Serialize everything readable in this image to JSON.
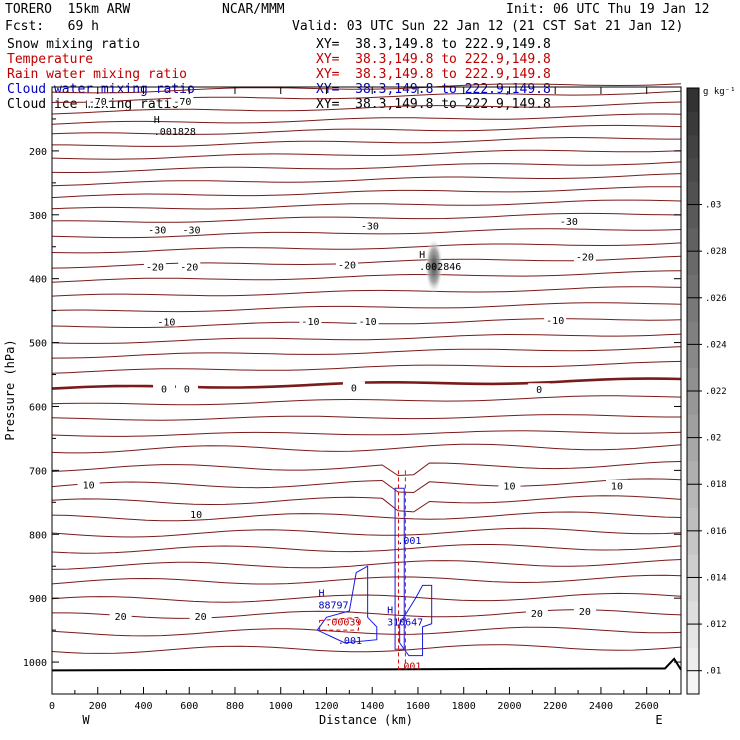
{
  "header": {
    "model": "TORERO  15km ARW",
    "center": "NCAR/MMM",
    "init": "Init: 06 UTC Thu 19 Jan 12",
    "fcst": "Fcst:   69 h",
    "valid": "Valid: 03 UTC Sun 22 Jan 12 (21 CST Sat 21 Jan 12)"
  },
  "fields": [
    {
      "name": "Snow mixing ratio",
      "xy": "XY=  38.3,149.8 to 222.9,149.8",
      "color": "#000000"
    },
    {
      "name": "Temperature",
      "xy": "XY=  38.3,149.8 to 222.9,149.8",
      "color": "#c00000"
    },
    {
      "name": "Rain water mixing ratio",
      "xy": "XY=  38.3,149.8 to 222.9,149.8",
      "color": "#c00000"
    },
    {
      "name": "Cloud water mixing ratio",
      "xy": "XY=  38.3,149.8 to 222.9,149.8",
      "color": "#0000c0"
    },
    {
      "name": "Cloud ice mixing ratio",
      "xy": "XY=  38.3,149.8 to 222.9,149.8",
      "color": "#000000"
    }
  ],
  "chart_data": {
    "type": "contour",
    "xlabel": "Distance (km)",
    "ylabel": "Pressure (hPa)",
    "xlim": [
      0,
      2750
    ],
    "ylim": [
      1050,
      100
    ],
    "x_ticks": [
      0,
      200,
      400,
      600,
      800,
      1000,
      1200,
      1400,
      1600,
      1800,
      2000,
      2200,
      2400,
      2600
    ],
    "y_ticks": [
      200,
      300,
      400,
      500,
      600,
      700,
      800,
      900,
      1000
    ],
    "x_end_labels": {
      "left": "W",
      "right": "E"
    },
    "colorbar": {
      "unit": "g kg⁻¹",
      "ticks": [
        0.01,
        0.012,
        0.014,
        0.016,
        0.018,
        0.02,
        0.022,
        0.024,
        0.026,
        0.028,
        0.03
      ],
      "tick_labels": [
        ".01",
        ".012",
        ".014",
        ".016",
        ".018",
        ".02",
        ".022",
        ".024",
        ".026",
        ".028",
        ".03"
      ],
      "range": [
        0.009,
        0.035
      ]
    },
    "temperature_labels": [
      {
        "text": "-70",
        "x": 200,
        "p": 122
      },
      {
        "text": "-70",
        "x": 570,
        "p": 122
      },
      {
        "text": "-30",
        "x": 460,
        "p": 323
      },
      {
        "text": "-30",
        "x": 610,
        "p": 323
      },
      {
        "text": "-30",
        "x": 1390,
        "p": 317
      },
      {
        "text": "-30",
        "x": 2260,
        "p": 310
      },
      {
        "text": "-20",
        "x": 450,
        "p": 381
      },
      {
        "text": "-20",
        "x": 600,
        "p": 381
      },
      {
        "text": "-20",
        "x": 1290,
        "p": 378
      },
      {
        "text": "-20",
        "x": 2330,
        "p": 365
      },
      {
        "text": "-10",
        "x": 500,
        "p": 467
      },
      {
        "text": "-10",
        "x": 1130,
        "p": 466
      },
      {
        "text": "-10",
        "x": 1380,
        "p": 466
      },
      {
        "text": "-10",
        "x": 2200,
        "p": 465
      },
      {
        "text": "0",
        "x": 490,
        "p": 572
      },
      {
        "text": "0",
        "x": 590,
        "p": 572
      },
      {
        "text": "0",
        "x": 1320,
        "p": 570
      },
      {
        "text": "0",
        "x": 2130,
        "p": 573
      },
      {
        "text": "10",
        "x": 160,
        "p": 722
      },
      {
        "text": "10",
        "x": 630,
        "p": 768
      },
      {
        "text": "10",
        "x": 2000,
        "p": 724
      },
      {
        "text": "10",
        "x": 2470,
        "p": 724
      },
      {
        "text": "20",
        "x": 300,
        "p": 928
      },
      {
        "text": "20",
        "x": 650,
        "p": 928
      },
      {
        "text": "20",
        "x": 2120,
        "p": 923
      },
      {
        "text": "20",
        "x": 2330,
        "p": 920
      }
    ],
    "extrema": [
      {
        "mark": "H",
        "value": ".001828",
        "x": 480,
        "p": 172,
        "color": "#000000"
      },
      {
        "mark": "H",
        "value": ".002846",
        "x": 1640,
        "p": 383,
        "color": "#000000"
      },
      {
        "mark": "H",
        "value": "88797",
        "x": 1200,
        "p": 913,
        "color": "#0000c0"
      },
      {
        "mark": "H",
        "value": "310647",
        "x": 1500,
        "p": 940,
        "color": "#0000c0"
      }
    ],
    "contour_labels": [
      {
        "text": ".00039",
        "x": 1195,
        "p": 943,
        "color": "#c00000"
      },
      {
        "text": ".001",
        "x": 1250,
        "p": 972,
        "color": "#0000c0"
      },
      {
        "text": ".001",
        "x": 1510,
        "p": 815,
        "color": "#0000c0"
      },
      {
        "text": ".001",
        "x": 1510,
        "p": 1012,
        "color": "#c00000"
      }
    ]
  }
}
